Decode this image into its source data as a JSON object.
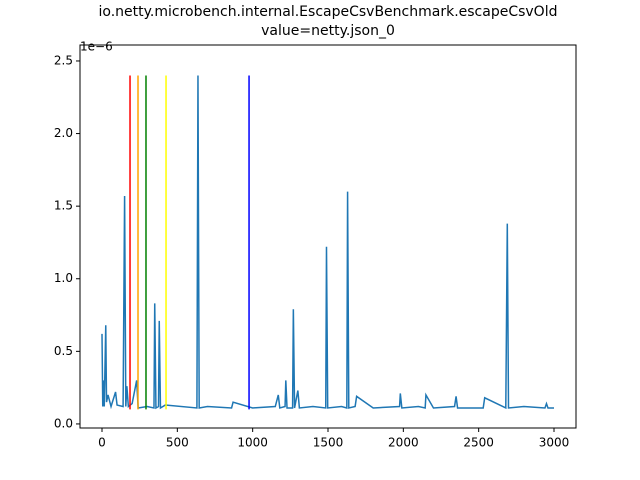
{
  "chart_data": {
    "type": "line",
    "title": [
      "io.netty.microbench.internal.EscapeCsvBenchmark.escapeCsvOld",
      "value=netty.json_0"
    ],
    "y_offset_label": "1e−6",
    "xlim": [
      -146,
      3146
    ],
    "ylim": [
      -0.028,
      2.61
    ],
    "xticks": [
      0,
      500,
      1000,
      1500,
      2000,
      2500,
      3000
    ],
    "yticks": [
      {
        "value": 0,
        "label": "0.0"
      },
      {
        "value": 0.5,
        "label": "0.5"
      },
      {
        "value": 1,
        "label": "1.0"
      },
      {
        "value": 1.5,
        "label": "1.5"
      },
      {
        "value": 2,
        "label": "2.0"
      },
      {
        "value": 2.5,
        "label": "2.5"
      }
    ],
    "series": [
      {
        "color": "#1f77b4",
        "x": [
          0,
          5,
          10,
          15,
          25,
          30,
          40,
          60,
          90,
          100,
          140,
          150,
          158,
          165,
          175,
          200,
          230,
          240,
          300,
          345,
          350,
          358,
          375,
          380,
          388,
          420,
          630,
          637,
          645,
          700,
          860,
          870,
          1000,
          1150,
          1170,
          1180,
          1215,
          1220,
          1228,
          1265,
          1270,
          1278,
          1300,
          1310,
          1400,
          1485,
          1490,
          1498,
          1590,
          1625,
          1630,
          1638,
          1680,
          1690,
          1800,
          1975,
          1980,
          1990,
          2100,
          2145,
          2150,
          2200,
          2340,
          2350,
          2360,
          2530,
          2540,
          2680,
          2690,
          2698,
          2800,
          2940,
          2950,
          2960,
          3000
        ],
        "values": [
          0.62,
          0.12,
          0.3,
          0.12,
          0.68,
          0.15,
          0.2,
          0.12,
          0.22,
          0.13,
          0.12,
          1.57,
          0.12,
          0.26,
          0.12,
          0.14,
          0.3,
          0.11,
          0.12,
          0.11,
          0.83,
          0.11,
          0.12,
          0.71,
          0.11,
          0.13,
          0.11,
          2.4,
          0.11,
          0.12,
          0.11,
          0.15,
          0.11,
          0.12,
          0.2,
          0.11,
          0.12,
          0.3,
          0.11,
          0.11,
          0.79,
          0.11,
          0.23,
          0.11,
          0.12,
          0.11,
          1.22,
          0.11,
          0.12,
          0.11,
          1.6,
          0.11,
          0.12,
          0.19,
          0.11,
          0.12,
          0.21,
          0.11,
          0.12,
          0.11,
          0.2,
          0.11,
          0.12,
          0.19,
          0.11,
          0.11,
          0.18,
          0.11,
          1.38,
          0.11,
          0.12,
          0.11,
          0.14,
          0.11,
          0.11
        ]
      }
    ],
    "vlines": [
      {
        "x": 186,
        "ymin": 0.1,
        "ymax": 2.4,
        "color": "#ff0000"
      },
      {
        "x": 239,
        "ymin": 0.1,
        "ymax": 2.4,
        "color": "#ffa500"
      },
      {
        "x": 292,
        "ymin": 0.1,
        "ymax": 2.4,
        "color": "#008000"
      },
      {
        "x": 425,
        "ymin": 0.1,
        "ymax": 2.4,
        "color": "#ffff00"
      },
      {
        "x": 976,
        "ymin": 0.1,
        "ymax": 2.4,
        "color": "#0000ff"
      }
    ]
  }
}
